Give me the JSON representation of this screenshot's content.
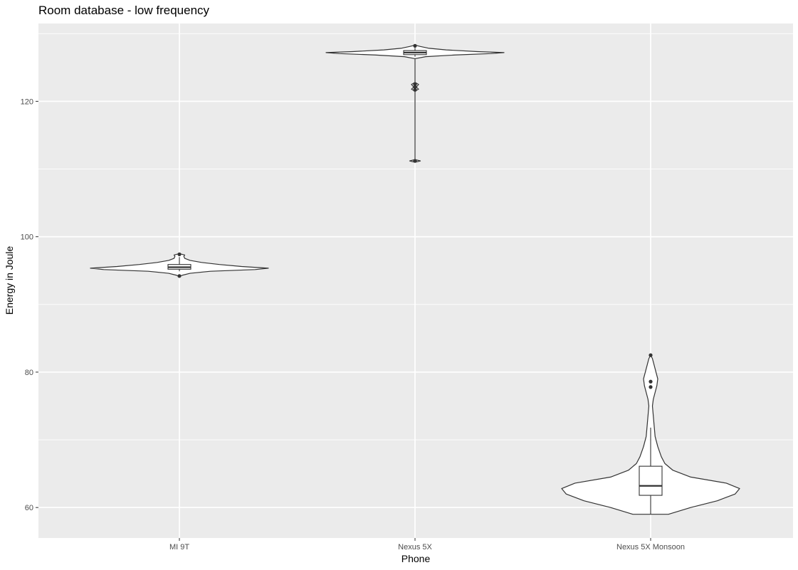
{
  "chart_data": {
    "type": "violin",
    "title": "Room database - low frequency",
    "xlabel": "Phone",
    "ylabel": "Energy in Joule",
    "categories": [
      "MI 9T",
      "Nexus 5X",
      "Nexus 5X Monsoon"
    ],
    "ylim": [
      55.5,
      131.5
    ],
    "yticks": [
      60,
      80,
      100,
      120
    ],
    "grid": true,
    "colors": {
      "panel": "#ebebeb",
      "grid_major": "#ffffff",
      "outline": "#333333",
      "fill": "#ffffff"
    },
    "series": [
      {
        "category": "MI 9T",
        "box": {
          "min": 94.9,
          "q1": 95.2,
          "median": 95.5,
          "q3": 95.9,
          "max": 97.0
        },
        "outliers": [
          94.2,
          97.4
        ],
        "density": [
          [
            94.1,
            0.0
          ],
          [
            94.3,
            0.03
          ],
          [
            94.6,
            0.12
          ],
          [
            94.9,
            0.35
          ],
          [
            95.15,
            0.85
          ],
          [
            95.35,
            1.0
          ],
          [
            95.6,
            0.7
          ],
          [
            95.9,
            0.45
          ],
          [
            96.2,
            0.25
          ],
          [
            96.5,
            0.12
          ],
          [
            96.8,
            0.06
          ],
          [
            97.1,
            0.05
          ],
          [
            97.3,
            0.06
          ],
          [
            97.5,
            0.0
          ]
        ]
      },
      {
        "category": "Nexus 5X",
        "box": {
          "min": 126.6,
          "q1": 126.9,
          "median": 127.2,
          "q3": 127.5,
          "max": 127.9
        },
        "outliers": [
          111.2,
          121.7,
          122.1,
          122.5,
          128.2
        ],
        "density": [
          [
            111.0,
            0.0
          ],
          [
            111.2,
            0.06
          ],
          [
            111.4,
            0.0
          ],
          [
            121.5,
            0.0
          ],
          [
            121.8,
            0.04
          ],
          [
            122.1,
            0.015
          ],
          [
            122.5,
            0.04
          ],
          [
            122.8,
            0.0
          ],
          [
            126.3,
            0.0
          ],
          [
            126.6,
            0.12
          ],
          [
            126.85,
            0.45
          ],
          [
            127.05,
            0.85
          ],
          [
            127.2,
            1.0
          ],
          [
            127.35,
            0.7
          ],
          [
            127.6,
            0.35
          ],
          [
            127.85,
            0.15
          ],
          [
            128.1,
            0.06
          ],
          [
            128.3,
            0.0
          ]
        ]
      },
      {
        "category": "Nexus 5X Monsoon",
        "box": {
          "min": 59.0,
          "q1": 61.8,
          "median": 63.2,
          "q3": 66.1,
          "max": 71.8
        },
        "outliers": [
          77.8,
          78.6,
          82.5
        ],
        "density": [
          [
            59.0,
            0.2
          ],
          [
            60.0,
            0.45
          ],
          [
            61.0,
            0.75
          ],
          [
            62.0,
            0.95
          ],
          [
            62.8,
            1.0
          ],
          [
            63.6,
            0.85
          ],
          [
            64.5,
            0.45
          ],
          [
            65.5,
            0.25
          ],
          [
            66.5,
            0.16
          ],
          [
            67.5,
            0.12
          ],
          [
            69.0,
            0.08
          ],
          [
            70.5,
            0.05
          ],
          [
            72.0,
            0.04
          ],
          [
            73.5,
            0.03
          ],
          [
            75.0,
            0.02
          ],
          [
            76.0,
            0.03
          ],
          [
            77.0,
            0.05
          ],
          [
            78.0,
            0.07
          ],
          [
            79.0,
            0.08
          ],
          [
            80.0,
            0.06
          ],
          [
            81.0,
            0.04
          ],
          [
            82.0,
            0.02
          ],
          [
            82.5,
            0.0
          ]
        ]
      }
    ]
  }
}
